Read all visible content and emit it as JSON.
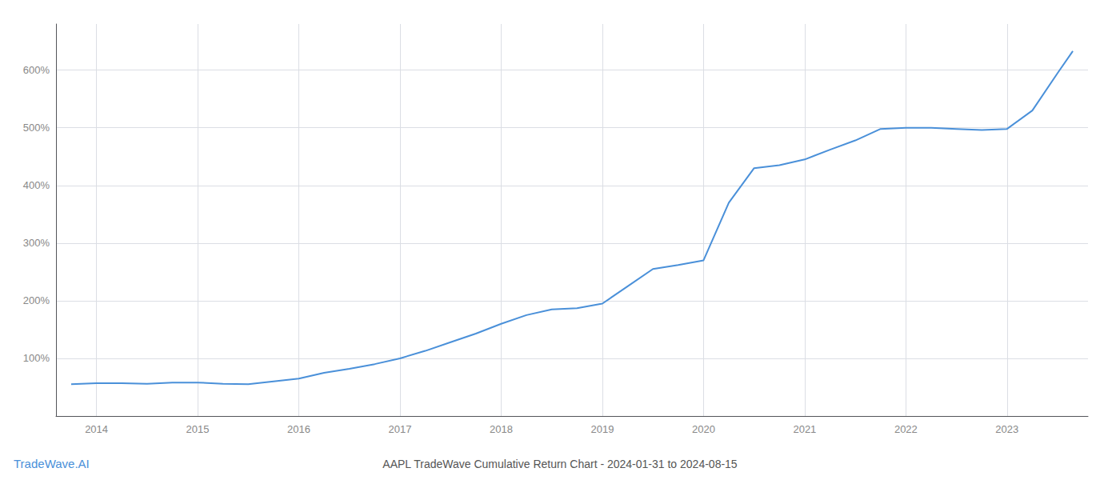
{
  "chart_data": {
    "type": "line",
    "title": "AAPL TradeWave Cumulative Return Chart - 2024-01-31 to 2024-08-15",
    "annotations": [
      "TradeWave.AI"
    ],
    "x": [
      2013.75,
      2014.0,
      2014.25,
      2014.5,
      2014.75,
      2015.0,
      2015.25,
      2015.5,
      2015.75,
      2016.0,
      2016.25,
      2016.5,
      2016.75,
      2017.0,
      2017.25,
      2017.5,
      2017.75,
      2018.0,
      2018.25,
      2018.5,
      2018.75,
      2019.0,
      2019.25,
      2019.5,
      2019.75,
      2020.0,
      2020.25,
      2020.5,
      2020.75,
      2021.0,
      2021.25,
      2021.5,
      2021.75,
      2022.0,
      2022.25,
      2022.5,
      2022.75,
      2023.0,
      2023.25,
      2023.5,
      2023.65
    ],
    "values": [
      55,
      57,
      57,
      56,
      58,
      58,
      56,
      55,
      60,
      65,
      75,
      82,
      90,
      100,
      113,
      128,
      143,
      160,
      175,
      185,
      187,
      195,
      225,
      255,
      262,
      270,
      370,
      430,
      435,
      445,
      462,
      478,
      498,
      500,
      500,
      498,
      496,
      498,
      530,
      595,
      633
    ],
    "color": "#4a90d9",
    "xlim": [
      2013.6,
      2023.8
    ],
    "xticks": [
      2014,
      2015,
      2016,
      2017,
      2018,
      2019,
      2020,
      2021,
      2022,
      2023
    ],
    "ylim": [
      0,
      680
    ],
    "yticks": [
      {
        "value": 100,
        "label": "100%"
      },
      {
        "value": 200,
        "label": "200%"
      },
      {
        "value": 300,
        "label": "300%"
      },
      {
        "value": 400,
        "label": "400%"
      },
      {
        "value": 500,
        "label": "500%"
      },
      {
        "value": 600,
        "label": "600%"
      }
    ],
    "grid": true
  }
}
